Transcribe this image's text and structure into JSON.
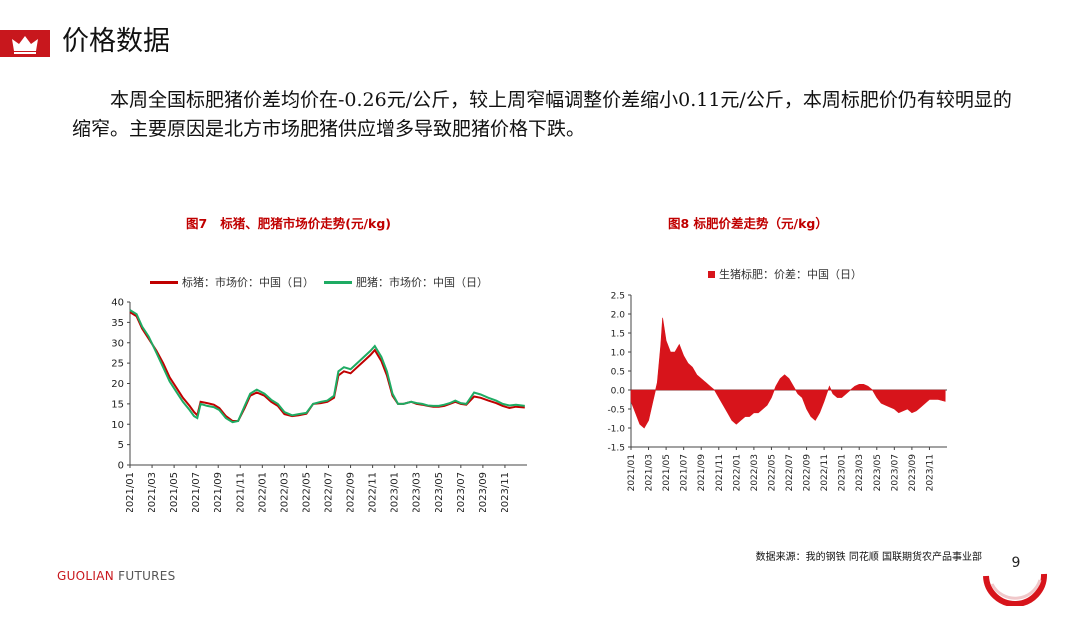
{
  "header": {
    "title": "价格数据",
    "icon": "crown-icon",
    "accent": "#c8171d"
  },
  "paragraph": "本周全国标肥猪价差均价在-0.26元/公斤，较上周窄幅调整价差缩小0.11元/公斤，本周标肥价仍有较明显的缩窄。主要原因是北方市场肥猪供应增多导致肥猪价格下跌。",
  "chart_data": [
    {
      "type": "line",
      "title": "图7   标猪、肥猪市场价走势(元/kg)",
      "ylim": [
        0,
        40
      ],
      "yticks": [
        "40",
        "35",
        "30",
        "25",
        "20",
        "15",
        "10",
        "5",
        "0"
      ],
      "xticks": [
        "2021/01",
        "2021/03",
        "2021/05",
        "2021/07",
        "2021/09",
        "2021/11",
        "2022/01",
        "2022/03",
        "2022/05",
        "2022/07",
        "2022/09",
        "2022/11",
        "2023/01",
        "2023/03",
        "2023/05",
        "2023/07",
        "2023/09",
        "2023/11"
      ],
      "x_period": [
        "2021-01-01",
        "2023-12-29"
      ],
      "grid": false,
      "legend_position": "top",
      "series": [
        {
          "name": "标猪：市场价：中国（日）",
          "color": "#c00000",
          "points": [
            [
              0,
              37.5
            ],
            [
              0.6,
              36.5
            ],
            [
              1.1,
              33.5
            ],
            [
              1.7,
              31
            ],
            [
              2.4,
              28
            ],
            [
              3,
              25
            ],
            [
              3.6,
              21.5
            ],
            [
              4.2,
              19
            ],
            [
              4.8,
              16.5
            ],
            [
              5.4,
              14.5
            ],
            [
              5.8,
              13
            ],
            [
              6.1,
              12.2
            ],
            [
              6.4,
              15.5
            ],
            [
              7,
              15.2
            ],
            [
              7.6,
              14.8
            ],
            [
              8.1,
              14
            ],
            [
              8.7,
              12
            ],
            [
              9.3,
              10.8
            ],
            [
              9.8,
              10.8
            ],
            [
              10.4,
              14
            ],
            [
              10.9,
              17
            ],
            [
              11.5,
              17.8
            ],
            [
              12.2,
              17
            ],
            [
              12.8,
              15.5
            ],
            [
              13.4,
              14.5
            ],
            [
              14,
              12.5
            ],
            [
              14.7,
              12
            ],
            [
              15.3,
              12.2
            ],
            [
              16,
              12.6
            ],
            [
              16.6,
              15
            ],
            [
              17.3,
              15.2
            ],
            [
              17.9,
              15.5
            ],
            [
              18.5,
              16.5
            ],
            [
              18.9,
              22
            ],
            [
              19.4,
              23
            ],
            [
              20,
              22.5
            ],
            [
              20.6,
              24
            ],
            [
              21.2,
              25.5
            ],
            [
              21.8,
              27
            ],
            [
              22.2,
              28.2
            ],
            [
              22.8,
              25.5
            ],
            [
              23.3,
              22
            ],
            [
              23.8,
              17
            ],
            [
              24.3,
              15
            ],
            [
              24.8,
              15
            ],
            [
              25.5,
              15.5
            ],
            [
              26,
              15
            ],
            [
              26.5,
              14.8
            ],
            [
              27,
              14.5
            ],
            [
              27.5,
              14.3
            ],
            [
              28,
              14.3
            ],
            [
              28.5,
              14.5
            ],
            [
              29,
              15
            ],
            [
              29.5,
              15.5
            ],
            [
              30,
              15
            ],
            [
              30.5,
              14.8
            ],
            [
              31.2,
              16.8
            ],
            [
              31.8,
              16.5
            ],
            [
              32.5,
              15.8
            ],
            [
              33.2,
              15.2
            ],
            [
              33.8,
              14.5
            ],
            [
              34.4,
              14
            ],
            [
              35,
              14.3
            ],
            [
              35.8,
              14.1
            ]
          ]
        },
        {
          "name": "肥猪：市场价：中国（日）",
          "color": "#1eab63",
          "points": [
            [
              0,
              38
            ],
            [
              0.6,
              37
            ],
            [
              1.1,
              34
            ],
            [
              1.7,
              31.5
            ],
            [
              2.4,
              27.5
            ],
            [
              3,
              24
            ],
            [
              3.6,
              20.5
            ],
            [
              4.2,
              18
            ],
            [
              4.8,
              15.5
            ],
            [
              5.4,
              13.5
            ],
            [
              5.8,
              12
            ],
            [
              6.1,
              11.5
            ],
            [
              6.4,
              15
            ],
            [
              7,
              14.5
            ],
            [
              7.6,
              14.2
            ],
            [
              8.1,
              13.5
            ],
            [
              8.7,
              11.5
            ],
            [
              9.3,
              10.5
            ],
            [
              9.8,
              10.8
            ],
            [
              10.4,
              14.5
            ],
            [
              10.9,
              17.5
            ],
            [
              11.5,
              18.5
            ],
            [
              12.2,
              17.5
            ],
            [
              12.8,
              16
            ],
            [
              13.4,
              15
            ],
            [
              14,
              13
            ],
            [
              14.7,
              12.2
            ],
            [
              15.3,
              12.5
            ],
            [
              16,
              12.8
            ],
            [
              16.6,
              15
            ],
            [
              17.3,
              15.5
            ],
            [
              17.9,
              15.8
            ],
            [
              18.5,
              17
            ],
            [
              18.9,
              23
            ],
            [
              19.4,
              24
            ],
            [
              20,
              23.5
            ],
            [
              20.6,
              25
            ],
            [
              21.2,
              26.5
            ],
            [
              21.8,
              28
            ],
            [
              22.2,
              29.2
            ],
            [
              22.8,
              26.5
            ],
            [
              23.3,
              23
            ],
            [
              23.8,
              17.5
            ],
            [
              24.3,
              15
            ],
            [
              24.8,
              15
            ],
            [
              25.5,
              15.5
            ],
            [
              26,
              15.2
            ],
            [
              26.5,
              15
            ],
            [
              27,
              14.6
            ],
            [
              27.5,
              14.5
            ],
            [
              28,
              14.5
            ],
            [
              28.5,
              14.8
            ],
            [
              29,
              15.2
            ],
            [
              29.5,
              15.8
            ],
            [
              30,
              15.2
            ],
            [
              30.5,
              15
            ],
            [
              31.2,
              17.8
            ],
            [
              31.8,
              17.3
            ],
            [
              32.5,
              16.5
            ],
            [
              33.2,
              15.8
            ],
            [
              33.8,
              15
            ],
            [
              34.4,
              14.6
            ],
            [
              35,
              14.8
            ],
            [
              35.8,
              14.5
            ]
          ]
        }
      ]
    },
    {
      "type": "area",
      "title": "图8 标肥价差走势（元/kg）",
      "ylim": [
        -1.5,
        2.5
      ],
      "yticks": [
        "2.5",
        "2.0",
        "1.5",
        "1.0",
        "0.5",
        "0.0",
        "-0.5",
        "-1.0",
        "-1.5"
      ],
      "xticks": [
        "2021/01",
        "2021/03",
        "2021/05",
        "2021/07",
        "2021/09",
        "2021/11",
        "2022/01",
        "2022/03",
        "2022/05",
        "2022/07",
        "2022/09",
        "2022/11",
        "2023/01",
        "2023/03",
        "2023/05",
        "2023/07",
        "2023/09",
        "2023/11"
      ],
      "x_period": [
        "2021-01-01",
        "2023-12-29"
      ],
      "grid": false,
      "legend_position": "top",
      "series": [
        {
          "name": "生猪标肥：价差：中国（日）",
          "color": "#d7141b",
          "points": [
            [
              0,
              -0.3
            ],
            [
              0.5,
              -0.6
            ],
            [
              1,
              -0.9
            ],
            [
              1.5,
              -1.0
            ],
            [
              2,
              -0.8
            ],
            [
              2.5,
              -0.3
            ],
            [
              3,
              0.2
            ],
            [
              3.4,
              1.2
            ],
            [
              3.6,
              1.9
            ],
            [
              4,
              1.3
            ],
            [
              4.5,
              1.0
            ],
            [
              5,
              1.0
            ],
            [
              5.5,
              1.2
            ],
            [
              6,
              0.9
            ],
            [
              6.5,
              0.7
            ],
            [
              7,
              0.6
            ],
            [
              7.5,
              0.4
            ],
            [
              8,
              0.3
            ],
            [
              8.5,
              0.2
            ],
            [
              9,
              0.1
            ],
            [
              9.5,
              0
            ],
            [
              10,
              -0.2
            ],
            [
              10.5,
              -0.4
            ],
            [
              11,
              -0.6
            ],
            [
              11.5,
              -0.8
            ],
            [
              12,
              -0.9
            ],
            [
              12.5,
              -0.8
            ],
            [
              13,
              -0.7
            ],
            [
              13.5,
              -0.7
            ],
            [
              14,
              -0.6
            ],
            [
              14.5,
              -0.6
            ],
            [
              15,
              -0.5
            ],
            [
              15.5,
              -0.4
            ],
            [
              16,
              -0.2
            ],
            [
              16.5,
              0.1
            ],
            [
              17,
              0.3
            ],
            [
              17.5,
              0.4
            ],
            [
              18,
              0.3
            ],
            [
              18.5,
              0.1
            ],
            [
              19,
              -0.1
            ],
            [
              19.5,
              -0.2
            ],
            [
              20,
              -0.5
            ],
            [
              20.5,
              -0.7
            ],
            [
              21,
              -0.8
            ],
            [
              21.5,
              -0.6
            ],
            [
              22,
              -0.3
            ],
            [
              22.3,
              -0.1
            ],
            [
              22.6,
              0.1
            ],
            [
              23,
              -0.1
            ],
            [
              23.5,
              -0.2
            ],
            [
              24,
              -0.2
            ],
            [
              24.5,
              -0.1
            ],
            [
              25,
              0
            ],
            [
              25.5,
              0.1
            ],
            [
              26,
              0.15
            ],
            [
              26.5,
              0.15
            ],
            [
              27,
              0.1
            ],
            [
              27.5,
              0
            ],
            [
              28,
              -0.2
            ],
            [
              28.5,
              -0.35
            ],
            [
              29,
              -0.4
            ],
            [
              29.5,
              -0.45
            ],
            [
              30,
              -0.5
            ],
            [
              30.5,
              -0.6
            ],
            [
              31,
              -0.55
            ],
            [
              31.5,
              -0.5
            ],
            [
              32,
              -0.6
            ],
            [
              32.5,
              -0.55
            ],
            [
              33,
              -0.45
            ],
            [
              33.5,
              -0.35
            ],
            [
              34,
              -0.25
            ],
            [
              35,
              -0.25
            ],
            [
              35.8,
              -0.3
            ]
          ]
        }
      ]
    }
  ],
  "source": "数据来源：我的钢铁  同花顺  国联期货农产品事业部",
  "footer": {
    "brand_1": "GUOLIAN",
    "brand_2": " FUTURES",
    "page": "9"
  }
}
